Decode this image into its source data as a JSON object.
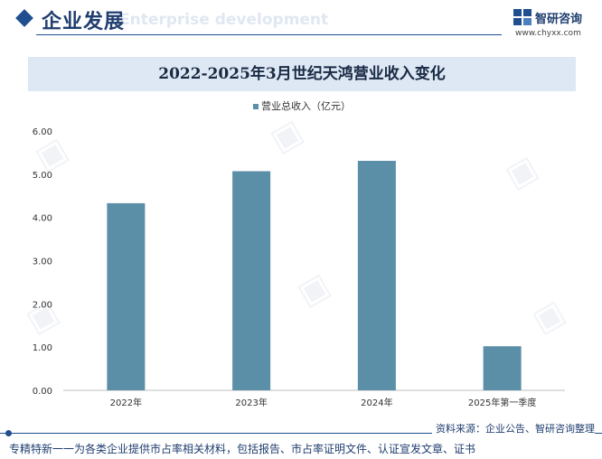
{
  "header": {
    "title": "企业发展",
    "ghost_text": "Enterprise development"
  },
  "logo": {
    "name": "智研咨询",
    "url": "www.chyxx.com"
  },
  "chart_data": {
    "type": "bar",
    "title": "2022-2025年3月世纪天鸿营业收入变化",
    "categories": [
      "2022年",
      "2023年",
      "2024年",
      "2025年第一季度"
    ],
    "series": [
      {
        "name": "营业总收入（亿元）",
        "values": [
          4.33,
          5.07,
          5.31,
          1.02
        ],
        "color": "#5b8fa8"
      }
    ],
    "yticks": [
      "0.00",
      "1.00",
      "2.00",
      "3.00",
      "4.00",
      "5.00",
      "6.00"
    ],
    "ylim": [
      0,
      6
    ],
    "legend_position": "top-center",
    "grid": false
  },
  "footer": {
    "source": "资料来源：企业公告、智研咨询整理",
    "note": "专精特新一一为各类企业提供市占率相关材料，包括报告、市占率证明文件、认证宣发文章、证书"
  }
}
